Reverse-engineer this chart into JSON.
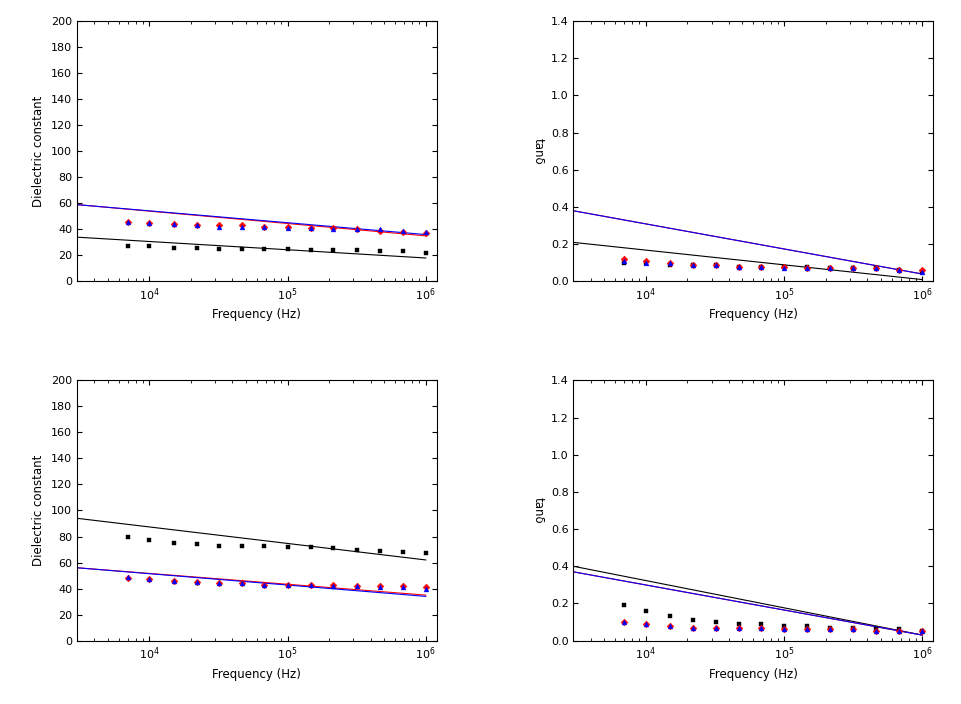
{
  "xlabel": "Frequency (Hz)",
  "ylabel_left": "Dielectric constant",
  "ylabel_right": "tanδ",
  "ylim_left": [
    0,
    200
  ],
  "ylim_right": [
    0.0,
    1.4
  ],
  "yticks_left": [
    0,
    20,
    40,
    60,
    80,
    100,
    120,
    140,
    160,
    180,
    200
  ],
  "yticks_right": [
    0.0,
    0.2,
    0.4,
    0.6,
    0.8,
    1.0,
    1.2,
    1.4
  ],
  "colors": [
    "black",
    "red",
    "blue"
  ],
  "panels": {
    "top_left": {
      "black_line": [
        3000,
        34,
        1000000,
        18
      ],
      "black_mx": [
        7000,
        10000,
        15000,
        22000,
        32000,
        47000,
        68000,
        100000,
        147000,
        215000,
        316000,
        464000,
        681000,
        1000000
      ],
      "black_my": [
        27,
        27,
        26,
        26,
        25,
        25,
        25,
        25,
        24,
        24,
        24,
        23,
        23,
        22
      ],
      "red_line": [
        3000,
        59,
        1000000,
        35
      ],
      "red_mx": [
        7000,
        10000,
        15000,
        22000,
        32000,
        47000,
        68000,
        100000,
        147000,
        215000,
        316000,
        464000,
        681000,
        1000000
      ],
      "red_my": [
        46,
        45,
        44,
        43,
        43,
        43,
        42,
        42,
        41,
        41,
        40,
        39,
        38,
        37
      ],
      "blue_line": [
        3000,
        59,
        1000000,
        36
      ],
      "blue_mx": [
        7000,
        10000,
        15000,
        22000,
        32000,
        47000,
        68000,
        100000,
        147000,
        215000,
        316000,
        464000,
        681000,
        1000000
      ],
      "blue_my": [
        46,
        45,
        44,
        43,
        42,
        42,
        42,
        41,
        41,
        40,
        40,
        40,
        39,
        38
      ]
    },
    "top_right": {
      "black_line": [
        3000,
        0.21,
        1000000,
        0.01
      ],
      "black_mx": [
        7000,
        10000,
        15000,
        22000,
        32000,
        47000,
        68000,
        100000,
        147000,
        215000,
        316000,
        464000,
        681000,
        1000000
      ],
      "black_my": [
        0.1,
        0.1,
        0.09,
        0.09,
        0.09,
        0.08,
        0.08,
        0.08,
        0.08,
        0.07,
        0.07,
        0.07,
        0.06,
        0.05
      ],
      "red_line": [
        3000,
        0.38,
        1000000,
        0.04
      ],
      "red_mx": [
        7000,
        10000,
        15000,
        22000,
        32000,
        47000,
        68000,
        100000,
        147000,
        215000,
        316000,
        464000,
        681000,
        1000000
      ],
      "red_my": [
        0.12,
        0.11,
        0.1,
        0.09,
        0.09,
        0.08,
        0.08,
        0.08,
        0.07,
        0.07,
        0.07,
        0.07,
        0.06,
        0.06
      ],
      "blue_line": [
        3000,
        0.38,
        1000000,
        0.04
      ],
      "blue_mx": [
        7000,
        10000,
        15000,
        22000,
        32000,
        47000,
        68000,
        100000,
        147000,
        215000,
        316000,
        464000,
        681000,
        1000000
      ],
      "blue_my": [
        0.11,
        0.1,
        0.1,
        0.09,
        0.09,
        0.08,
        0.08,
        0.07,
        0.07,
        0.07,
        0.07,
        0.07,
        0.06,
        0.05
      ]
    },
    "bot_left": {
      "black_line": [
        3000,
        94,
        1000000,
        62
      ],
      "black_mx": [
        7000,
        10000,
        15000,
        22000,
        32000,
        47000,
        68000,
        100000,
        147000,
        215000,
        316000,
        464000,
        681000,
        1000000
      ],
      "black_my": [
        80,
        77,
        75,
        74,
        73,
        73,
        73,
        72,
        72,
        71,
        70,
        69,
        68,
        67
      ],
      "red_line": [
        3000,
        56,
        1000000,
        35
      ],
      "red_mx": [
        7000,
        10000,
        15000,
        22000,
        32000,
        47000,
        68000,
        100000,
        147000,
        215000,
        316000,
        464000,
        681000,
        1000000
      ],
      "red_my": [
        48,
        47,
        46,
        45,
        44,
        44,
        43,
        43,
        43,
        43,
        42,
        42,
        42,
        41
      ],
      "blue_line": [
        3000,
        56,
        1000000,
        34
      ],
      "blue_mx": [
        7000,
        10000,
        15000,
        22000,
        32000,
        47000,
        68000,
        100000,
        147000,
        215000,
        316000,
        464000,
        681000,
        1000000
      ],
      "blue_my": [
        49,
        47,
        46,
        45,
        44,
        44,
        43,
        43,
        43,
        42,
        42,
        41,
        41,
        40
      ]
    },
    "bot_right": {
      "black_line": [
        3000,
        0.4,
        1000000,
        0.03
      ],
      "black_mx": [
        7000,
        10000,
        15000,
        22000,
        32000,
        47000,
        68000,
        100000,
        147000,
        215000,
        316000,
        464000,
        681000,
        1000000
      ],
      "black_my": [
        0.19,
        0.16,
        0.13,
        0.11,
        0.1,
        0.09,
        0.09,
        0.08,
        0.08,
        0.07,
        0.07,
        0.06,
        0.06,
        0.05
      ],
      "red_line": [
        3000,
        0.37,
        1000000,
        0.03
      ],
      "red_mx": [
        7000,
        10000,
        15000,
        22000,
        32000,
        47000,
        68000,
        100000,
        147000,
        215000,
        316000,
        464000,
        681000,
        1000000
      ],
      "red_my": [
        0.1,
        0.09,
        0.08,
        0.07,
        0.07,
        0.07,
        0.07,
        0.06,
        0.06,
        0.06,
        0.06,
        0.05,
        0.05,
        0.05
      ],
      "blue_line": [
        3000,
        0.37,
        1000000,
        0.03
      ],
      "blue_mx": [
        7000,
        10000,
        15000,
        22000,
        32000,
        47000,
        68000,
        100000,
        147000,
        215000,
        316000,
        464000,
        681000,
        1000000
      ],
      "blue_my": [
        0.1,
        0.09,
        0.08,
        0.07,
        0.07,
        0.07,
        0.07,
        0.06,
        0.06,
        0.06,
        0.06,
        0.05,
        0.05,
        0.05
      ]
    }
  }
}
